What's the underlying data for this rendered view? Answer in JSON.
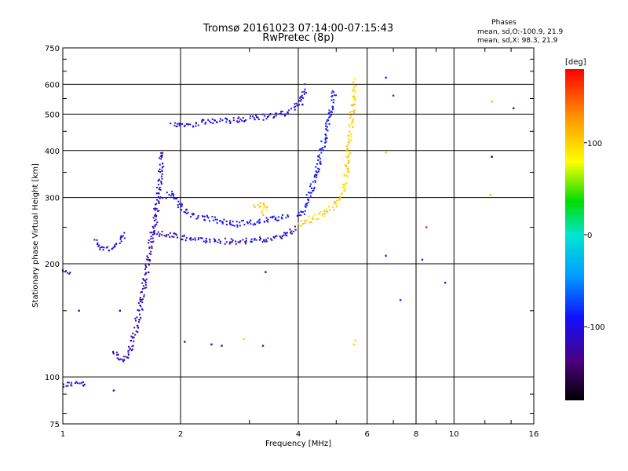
{
  "chart_data": {
    "type": "scatter",
    "title": "Tromsø 20161023 07:14:00-07:15:43",
    "subtitle": "RwPretec (8p)",
    "xlabel": "Frequency [MHz]",
    "ylabel": "Stationary phase Virtual Height [km]",
    "x_scale": "log",
    "y_scale": "log",
    "xlim": [
      1,
      16
    ],
    "ylim": [
      75,
      750
    ],
    "grid": true,
    "x_ticks": [
      {
        "value": 1,
        "label": "1"
      },
      {
        "value": 2,
        "label": "2"
      },
      {
        "value": 4,
        "label": "4"
      },
      {
        "value": 6,
        "label": "6"
      },
      {
        "value": 8,
        "label": "8"
      },
      {
        "value": 10,
        "label": "10"
      },
      {
        "value": 16,
        "label": "16"
      }
    ],
    "y_ticks": [
      {
        "value": 75,
        "label": "75"
      },
      {
        "value": 100,
        "label": "100"
      },
      {
        "value": 200,
        "label": "200"
      },
      {
        "value": 300,
        "label": "300"
      },
      {
        "value": 400,
        "label": "400"
      },
      {
        "value": 500,
        "label": "500"
      },
      {
        "value": 600,
        "label": "600"
      },
      {
        "value": 750,
        "label": "750"
      }
    ],
    "phases_box": {
      "title": "Phases",
      "line_o": "mean, sd,O:-100.9, 21.9",
      "line_x": "mean, sd,X:  98.3, 21.9"
    },
    "colorbar": {
      "label": "[deg]",
      "min": -180,
      "max": 180,
      "ticks": [
        {
          "value": 100,
          "label": "100"
        },
        {
          "value": 0,
          "label": "0"
        },
        {
          "value": -100,
          "label": "-100"
        }
      ]
    },
    "traces": [
      {
        "kind": "o_trace",
        "phase": -110,
        "points": [
          [
            1.0,
            95
          ],
          [
            1.05,
            96
          ],
          [
            1.1,
            96
          ],
          [
            1.15,
            95
          ]
        ]
      },
      {
        "kind": "o_trace",
        "phase": -115,
        "points": [
          [
            1.0,
            190
          ],
          [
            1.05,
            189
          ]
        ]
      },
      {
        "kind": "o_trace",
        "phase": -105,
        "points": [
          [
            1.2,
            230
          ],
          [
            1.25,
            222
          ],
          [
            1.3,
            219
          ],
          [
            1.35,
            221
          ],
          [
            1.4,
            228
          ],
          [
            1.45,
            240
          ]
        ]
      },
      {
        "kind": "o_trace",
        "phase": -115,
        "points": [
          [
            1.35,
            118
          ],
          [
            1.38,
            112
          ],
          [
            1.42,
            110
          ],
          [
            1.48,
            117
          ],
          [
            1.52,
            128
          ],
          [
            1.55,
            140
          ],
          [
            1.6,
            162
          ],
          [
            1.62,
            180
          ],
          [
            1.65,
            200
          ],
          [
            1.68,
            228
          ],
          [
            1.72,
            260
          ],
          [
            1.75,
            300
          ],
          [
            1.78,
            350
          ],
          [
            1.8,
            400
          ]
        ]
      },
      {
        "kind": "o_trace",
        "phase": -110,
        "points": [
          [
            1.7,
            240
          ],
          [
            1.8,
            240
          ],
          [
            1.9,
            238
          ],
          [
            2.0,
            235
          ],
          [
            2.2,
            232
          ],
          [
            2.5,
            230
          ],
          [
            2.8,
            229
          ],
          [
            3.0,
            230
          ],
          [
            3.3,
            232
          ],
          [
            3.6,
            236
          ],
          [
            3.8,
            242
          ],
          [
            3.95,
            250
          ]
        ]
      },
      {
        "kind": "o_trace",
        "phase": -100,
        "points": [
          [
            1.9,
            470
          ],
          [
            2.0,
            470
          ],
          [
            2.1,
            468
          ],
          [
            2.2,
            472
          ],
          [
            2.3,
            476
          ],
          [
            2.5,
            478
          ],
          [
            2.8,
            482
          ],
          [
            3.0,
            485
          ],
          [
            3.3,
            492
          ],
          [
            3.5,
            497
          ],
          [
            3.7,
            503
          ],
          [
            3.9,
            520
          ],
          [
            4.0,
            540
          ],
          [
            4.1,
            560
          ],
          [
            4.2,
            595
          ]
        ]
      },
      {
        "kind": "o_trace",
        "phase": -95,
        "points": [
          [
            1.8,
            300
          ],
          [
            1.9,
            310
          ],
          [
            2.0,
            285
          ],
          [
            2.1,
            270
          ],
          [
            2.3,
            265
          ],
          [
            2.5,
            260
          ],
          [
            2.8,
            255
          ],
          [
            3.1,
            258
          ],
          [
            3.4,
            262
          ],
          [
            3.8,
            268
          ]
        ]
      },
      {
        "kind": "o_trace",
        "phase": -90,
        "points": [
          [
            4.0,
            265
          ],
          [
            4.1,
            275
          ],
          [
            4.2,
            290
          ],
          [
            4.3,
            310
          ],
          [
            4.4,
            335
          ],
          [
            4.5,
            365
          ],
          [
            4.6,
            400
          ],
          [
            4.7,
            440
          ],
          [
            4.8,
            490
          ],
          [
            4.9,
            540
          ],
          [
            4.95,
            580
          ]
        ]
      },
      {
        "kind": "x_trace",
        "phase": 100,
        "points": [
          [
            4.0,
            255
          ],
          [
            4.2,
            260
          ],
          [
            4.4,
            265
          ],
          [
            4.6,
            270
          ],
          [
            4.8,
            278
          ],
          [
            5.0,
            290
          ],
          [
            5.2,
            310
          ],
          [
            5.3,
            340
          ],
          [
            5.35,
            380
          ],
          [
            5.4,
            420
          ],
          [
            5.45,
            470
          ],
          [
            5.5,
            520
          ],
          [
            5.55,
            570
          ],
          [
            5.6,
            620
          ]
        ]
      },
      {
        "kind": "x_trace",
        "phase": 105,
        "points": [
          [
            3.1,
            282
          ],
          [
            3.2,
            290
          ],
          [
            3.3,
            286
          ],
          [
            3.25,
            272
          ]
        ]
      },
      {
        "kind": "scatter",
        "phase": -80,
        "points": [
          [
            6.7,
            625
          ],
          [
            7.0,
            560
          ],
          [
            6.7,
            210
          ],
          [
            7.3,
            160
          ],
          [
            8.3,
            205
          ],
          [
            9.5,
            178
          ]
        ]
      },
      {
        "kind": "scatter",
        "phase": 60,
        "points": [
          [
            12.5,
            540
          ],
          [
            12.4,
            305
          ],
          [
            6.7,
            395
          ]
        ]
      },
      {
        "kind": "scatter",
        "phase": -170,
        "points": [
          [
            12.5,
            385
          ]
        ]
      },
      {
        "kind": "scatter",
        "phase": 170,
        "points": [
          [
            8.5,
            250
          ]
        ]
      },
      {
        "kind": "scatter",
        "phase": -120,
        "points": [
          [
            14.2,
            518
          ],
          [
            4.1,
            530
          ],
          [
            3.3,
            190
          ]
        ]
      },
      {
        "kind": "scatter",
        "phase": -110,
        "points": [
          [
            2.05,
            124
          ],
          [
            2.4,
            122
          ],
          [
            2.55,
            121
          ],
          [
            3.25,
            121
          ],
          [
            1.1,
            150
          ],
          [
            1.4,
            150
          ],
          [
            1.35,
            92
          ]
        ]
      },
      {
        "kind": "scatter",
        "phase": 100,
        "points": [
          [
            5.6,
            125
          ],
          [
            5.55,
            122
          ],
          [
            2.9,
            126
          ]
        ]
      }
    ]
  }
}
